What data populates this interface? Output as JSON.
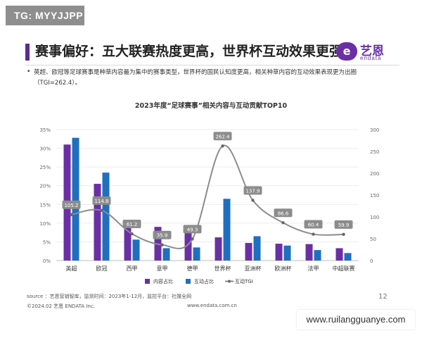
{
  "badge": "TG: MYYJJPP",
  "header": {
    "title": "赛事偏好：五大联赛热度更高，世界杯互动效果更强",
    "logo_mark": "e",
    "logo_text": "艺恩",
    "logo_sub": "endata"
  },
  "summary": {
    "bullet": "•",
    "text": "英超、欧冠等足球赛事是种草内容最为集中的赛事类型，世界杯的国民认知度更高，相关种草内容的互动效果表现更为出圈（TGI=262.4）。"
  },
  "footer": {
    "source": "source ：艺恩营销智库，监测时间：2023年1-12月，监控平台：社媒全网",
    "copyright": "©2024.02  艺恩 ENDATA Inc.",
    "url": "www.endata.com.cn",
    "page": "12"
  },
  "watermark": "www.ruilangguanye.com",
  "colors": {
    "content": "#6a2fa5",
    "interaction": "#1f6fbf",
    "tgi": "#8c8c8c",
    "accent": "#5a2e8c"
  },
  "chart_data": {
    "type": "bar",
    "title": "2023年度“足球赛事”相关内容与互动贡献TOP10",
    "categories": [
      "英超",
      "欧冠",
      "西甲",
      "意甲",
      "德甲",
      "世界杯",
      "亚洲杯",
      "欧洲杯",
      "法甲",
      "中超联赛"
    ],
    "series": [
      {
        "name": "内容占比",
        "type": "bar",
        "axis": "left",
        "unit": "%",
        "values": [
          31.0,
          20.5,
          9.0,
          9.0,
          8.0,
          6.2,
          4.7,
          4.5,
          4.4,
          3.3
        ]
      },
      {
        "name": "互动占比",
        "type": "bar",
        "axis": "left",
        "unit": "%",
        "values": [
          32.8,
          23.5,
          5.6,
          3.3,
          3.5,
          16.5,
          6.5,
          4.0,
          2.8,
          2.0
        ]
      },
      {
        "name": "互动TGI",
        "type": "line",
        "axis": "right",
        "values": [
          105.2,
          114.8,
          61.2,
          35.9,
          49.3,
          262.4,
          137.9,
          86.6,
          60.4,
          59.9
        ]
      }
    ],
    "left_axis": {
      "min": 0,
      "max": 35,
      "ticks": [
        "0%",
        "5%",
        "10%",
        "15%",
        "20%",
        "25%",
        "30%",
        "35%"
      ]
    },
    "right_axis": {
      "min": 0,
      "max": 300,
      "ticks": [
        "0",
        "50",
        "100",
        "150",
        "200",
        "250",
        "300"
      ]
    },
    "legend": [
      "内容占比",
      "互动占比",
      "互动TGI"
    ],
    "legend_position": "bottom"
  }
}
